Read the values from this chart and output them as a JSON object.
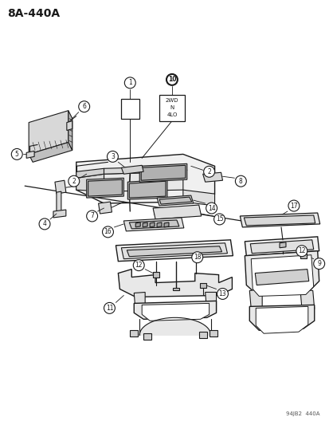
{
  "title": "8A-440A",
  "watermark": "94JB2  440A",
  "bg_color": "#ffffff",
  "fg_color": "#1a1a1a",
  "label_box_text": "2WD\nN\n4LO",
  "fig_width": 4.14,
  "fig_height": 5.33,
  "dpi": 100
}
